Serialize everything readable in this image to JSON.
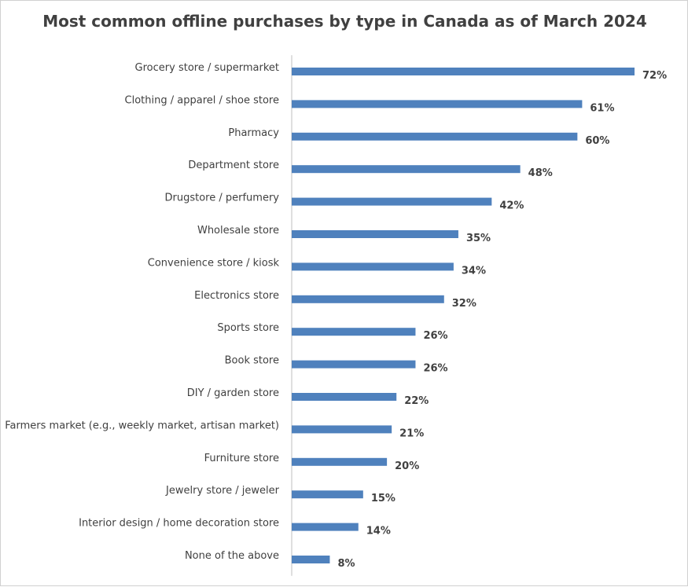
{
  "chart_data": {
    "type": "bar",
    "orientation": "horizontal",
    "title": "Most common offline purchases by type in Canada as of March 2024",
    "xlabel": "",
    "ylabel": "",
    "unit": "%",
    "grid": false,
    "legend": "none",
    "bar_color": "#4f81bd",
    "xlim": [
      0,
      80
    ],
    "categories": [
      "Grocery store / supermarket",
      "Clothing / apparel / shoe store",
      "Pharmacy",
      "Department store",
      "Drugstore / perfumery",
      "Wholesale store",
      "Convenience store / kiosk",
      "Electronics store",
      "Sports store",
      "Book store",
      "DIY / garden store",
      "Farmers market (e.g., weekly market, artisan market)",
      "Furniture store",
      "Jewelry store / jeweler",
      "Interior design / home decoration store",
      "None of the above"
    ],
    "values": [
      72,
      61,
      60,
      48,
      42,
      35,
      34,
      32,
      26,
      26,
      22,
      21,
      20,
      15,
      14,
      8
    ],
    "data_labels": [
      "72%",
      "61%",
      "60%",
      "48%",
      "42%",
      "35%",
      "34%",
      "32%",
      "26%",
      "26%",
      "22%",
      "21%",
      "20%",
      "15%",
      "14%",
      "8%"
    ]
  }
}
